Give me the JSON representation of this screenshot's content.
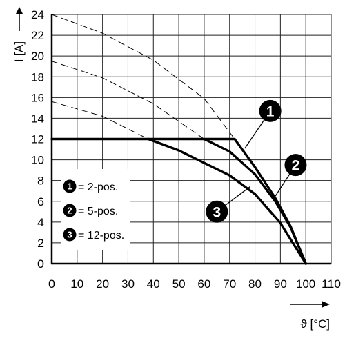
{
  "chart_data": {
    "type": "line",
    "title": "",
    "xlabel": "ϑ [°C]",
    "ylabel": "I [A]",
    "xlim": [
      0,
      110
    ],
    "ylim": [
      0,
      24
    ],
    "xticks": [
      0,
      10,
      20,
      30,
      40,
      50,
      60,
      70,
      80,
      90,
      100,
      110
    ],
    "yticks": [
      0,
      2,
      4,
      6,
      8,
      10,
      12,
      14,
      16,
      18,
      20,
      22,
      24
    ],
    "grid": true,
    "legend": {
      "placement": "bottom-left",
      "entries": [
        {
          "marker": "1",
          "label": "= 2-pos."
        },
        {
          "marker": "2",
          "label": "= 5-pos."
        },
        {
          "marker": "3",
          "label": "= 12-pos."
        }
      ]
    },
    "series": [
      {
        "marker": "1",
        "style": "solid",
        "points": [
          [
            0,
            12
          ],
          [
            72,
            12
          ],
          [
            80,
            9.3
          ],
          [
            88,
            6.3
          ],
          [
            94,
            3.6
          ],
          [
            100,
            0
          ]
        ]
      },
      {
        "marker": "2",
        "style": "solid",
        "points": [
          [
            60,
            12
          ],
          [
            70,
            10.8
          ],
          [
            80,
            8.6
          ],
          [
            88,
            6
          ],
          [
            94,
            3.5
          ],
          [
            100,
            0
          ]
        ]
      },
      {
        "marker": "3",
        "style": "solid",
        "points": [
          [
            38,
            12
          ],
          [
            50,
            10.9
          ],
          [
            60,
            9.7
          ],
          [
            70,
            8.5
          ],
          [
            80,
            6.7
          ],
          [
            90,
            3.9
          ],
          [
            100,
            0
          ]
        ]
      },
      {
        "marker": "1",
        "style": "dashed",
        "points": [
          [
            0,
            24
          ],
          [
            20,
            22.2
          ],
          [
            40,
            19.6
          ],
          [
            60,
            15.9
          ],
          [
            72,
            12
          ]
        ]
      },
      {
        "marker": "2",
        "style": "dashed",
        "points": [
          [
            0,
            19.5
          ],
          [
            20,
            17.9
          ],
          [
            40,
            15.4
          ],
          [
            60,
            12
          ]
        ]
      },
      {
        "marker": "3",
        "style": "dashed",
        "points": [
          [
            0,
            15.6
          ],
          [
            20,
            14.2
          ],
          [
            38,
            12
          ]
        ]
      }
    ],
    "annotations": [
      {
        "marker": "1",
        "label_at": [
          86,
          14.7
        ],
        "leader_to": [
          76,
          11.1
        ]
      },
      {
        "marker": "2",
        "label_at": [
          96,
          9.5
        ],
        "leader_to": [
          88,
          6.5
        ]
      },
      {
        "marker": "3",
        "label_at": [
          65,
          5.0
        ],
        "leader_to": [
          78,
          7.4
        ]
      }
    ]
  }
}
